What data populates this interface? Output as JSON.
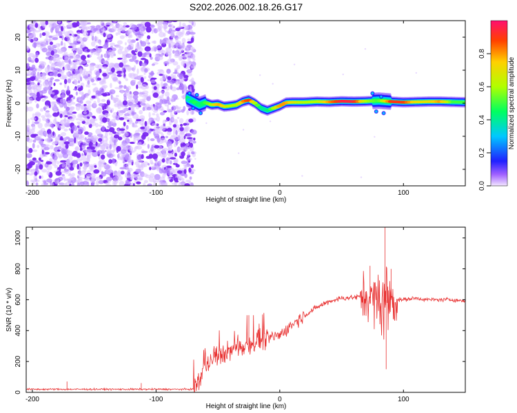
{
  "title": "S202.2026.002.18.26.G17",
  "chart_data": [
    {
      "type": "heatmap",
      "xlabel": "Height of straight line (km)",
      "ylabel": "Frequency (Hz)",
      "xlim": [
        -205,
        150
      ],
      "ylim": [
        -25,
        25
      ],
      "x_ticks": [
        "-200",
        "-100",
        "0",
        "100"
      ],
      "y_ticks": [
        "20",
        "10",
        "0",
        "-10",
        "-20"
      ],
      "colorbar": {
        "label": "Normalized spectral amplitude",
        "range": [
          0,
          1
        ],
        "ticks": [
          "0.0",
          "0.2",
          "0.4",
          "0.6",
          "0.8"
        ]
      },
      "noise_region_x": [
        -205,
        -73
      ],
      "signal_ridge": {
        "x": [
          -75,
          -70,
          -65,
          -60,
          -55,
          -50,
          -45,
          -40,
          -35,
          -30,
          -25,
          -20,
          -15,
          -10,
          -5,
          0,
          5,
          10,
          20,
          30,
          40,
          50,
          60,
          70,
          80,
          90,
          100,
          110,
          120,
          130,
          140,
          150
        ],
        "freq": [
          1.5,
          0.5,
          -0.5,
          0.2,
          -0.5,
          -0.3,
          -1.0,
          -0.8,
          -0.5,
          0.5,
          1.0,
          0.0,
          -1.5,
          -2.2,
          -1.5,
          -0.8,
          0.2,
          0.3,
          0.3,
          0.5,
          0.4,
          0.6,
          0.5,
          0.6,
          0.8,
          0.5,
          0.3,
          0.4,
          0.5,
          0.5,
          0.4,
          0.3
        ],
        "peak_amplitude": [
          0.2,
          0.5,
          0.4,
          0.5,
          0.6,
          0.8,
          0.7,
          0.6,
          0.6,
          0.8,
          0.9,
          0.6,
          0.4,
          0.4,
          0.6,
          0.8,
          0.8,
          0.7,
          0.6,
          0.6,
          0.8,
          0.95,
          0.95,
          0.6,
          0.5,
          0.9,
          0.9,
          0.7,
          0.7,
          0.8,
          0.5,
          0.5
        ]
      }
    },
    {
      "type": "line",
      "xlabel": "Height of straight line (km)",
      "ylabel": "SNR (10 * v/v)",
      "xlim": [
        -205,
        150
      ],
      "ylim": [
        0,
        1070
      ],
      "x_ticks": [
        "-200",
        "-100",
        "0",
        "100"
      ],
      "y_ticks": [
        "0",
        "200",
        "400",
        "600",
        "800",
        "1000"
      ],
      "color": "#e83030",
      "trend": {
        "x": [
          -205,
          -70,
          -65,
          -60,
          -50,
          -40,
          -30,
          -20,
          -10,
          0,
          10,
          20,
          30,
          40,
          50,
          60,
          70,
          80,
          90,
          100,
          110,
          120,
          130,
          140,
          150
        ],
        "y": [
          20,
          20,
          80,
          180,
          230,
          270,
          300,
          330,
          350,
          370,
          440,
          500,
          550,
          590,
          610,
          615,
          620,
          590,
          600,
          600,
          610,
          600,
          600,
          600,
          590
        ]
      },
      "spikes": [
        {
          "x": -172,
          "y": 70
        },
        {
          "x": -112,
          "y": 60
        },
        {
          "x": -25,
          "y": 500
        },
        {
          "x": 73,
          "y": 820
        },
        {
          "x": 85,
          "y": 1070
        },
        {
          "x": 86,
          "y": 150
        },
        {
          "x": 90,
          "y": 800
        }
      ]
    }
  ]
}
